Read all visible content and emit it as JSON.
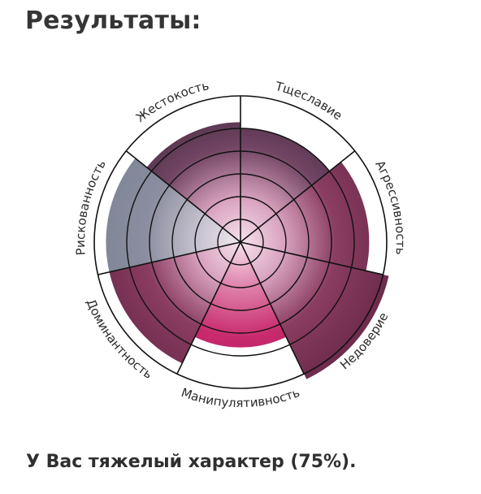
{
  "header": {
    "title": "Результаты:"
  },
  "chart_data": {
    "type": "radial-bar",
    "scale_max": 5,
    "categories": [
      "Тщеславие",
      "Агрессивность",
      "Недоверие",
      "Манипулятивность",
      "Доминантность",
      "Рискованность",
      "Жестокость"
    ],
    "values": [
      3.9,
      4.4,
      5.2,
      3.6,
      4.6,
      4.6,
      4.1
    ],
    "colors": {
      "center": "#f6e3ee",
      "inner": "#d9a3bf",
      "outer_start": "#3e2a3c",
      "outer_end": "#6d2b4c",
      "pink": "#c92a6e",
      "slate": "#7c8394",
      "ring": "#111111"
    }
  },
  "result": {
    "text": "У Вас тяжелый характер (75%)."
  }
}
